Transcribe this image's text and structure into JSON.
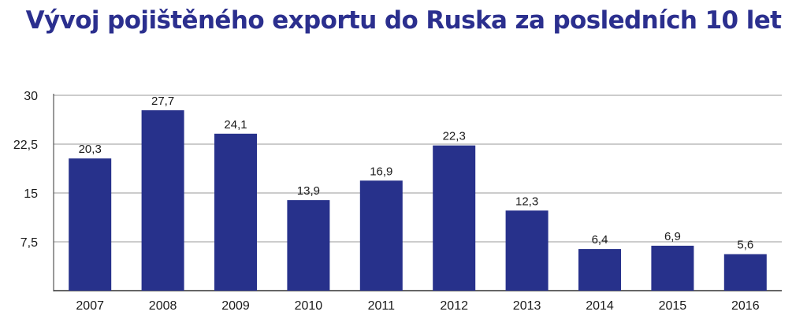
{
  "chart_data": {
    "type": "bar",
    "title": "Vývoj pojištěného exportu do Ruska za posledních 10 let",
    "xlabel": "",
    "ylabel": "",
    "categories": [
      "2007",
      "2008",
      "2009",
      "2010",
      "2011",
      "2012",
      "2013",
      "2014",
      "2015",
      "2016"
    ],
    "values": [
      20.3,
      27.7,
      24.1,
      13.9,
      16.9,
      22.3,
      12.3,
      6.4,
      6.9,
      5.6
    ],
    "value_labels": [
      "20,3",
      "27,7",
      "24,1",
      "13,9",
      "16,9",
      "22,3",
      "12,3",
      "6,4",
      "6,9",
      "5,6"
    ],
    "ylim": [
      0,
      30
    ],
    "yticks": [
      0,
      7.5,
      15,
      22.5,
      30
    ],
    "ytick_labels": [
      "",
      "7,5",
      "15",
      "22,5",
      "30"
    ],
    "grid": true,
    "legend": "none",
    "bar_color": "#27318b",
    "title_color": "#2b2f8e",
    "grid_color": "#999999"
  }
}
